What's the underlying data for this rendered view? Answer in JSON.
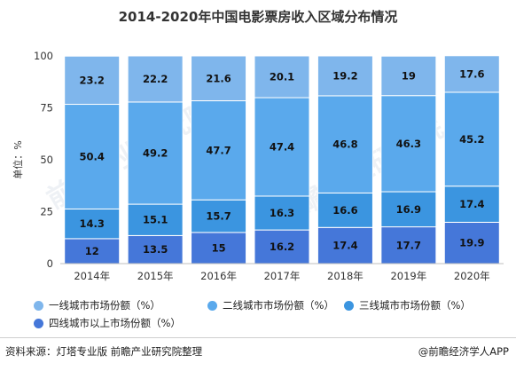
{
  "title": "2014-2020年中国电影票房收入区域分布情况",
  "source_text": "资料来源：灯塔专业版 前瞻产业研究院整理",
  "brand_text": "@前瞻经济学人APP",
  "watermark_text": "前瞻产业研究院",
  "chart_data": {
    "type": "bar",
    "stacked": true,
    "title": "2014-2020年中国电影票房收入区域分布情况",
    "ylabel": "单位：%",
    "xlabel": "",
    "ylim": [
      0,
      100
    ],
    "yticks": [
      0,
      25,
      50,
      75,
      100
    ],
    "categories": [
      "2014年",
      "2015年",
      "2016年",
      "2017年",
      "2018年",
      "2019年",
      "2020年"
    ],
    "series": [
      {
        "name": "四线城市以上市场份额（%）",
        "color": "#4577d9",
        "values": [
          12,
          13.5,
          15,
          16.2,
          17.4,
          17.7,
          19.9
        ]
      },
      {
        "name": "三线城市市场份额（%）",
        "color": "#3b95e0",
        "values": [
          14.3,
          15.1,
          15.7,
          16.3,
          16.6,
          16.9,
          17.4
        ]
      },
      {
        "name": "二线城市市场份额（%）",
        "color": "#5aa9ec",
        "values": [
          50.4,
          49.2,
          47.7,
          47.4,
          46.8,
          46.3,
          45.2
        ]
      },
      {
        "name": "一线城市市场份额（%）",
        "color": "#7fb6ec",
        "values": [
          23.2,
          22.2,
          21.6,
          20.1,
          19.2,
          19,
          17.6
        ]
      }
    ],
    "legend_order": [
      3,
      2,
      1,
      0
    ],
    "legend_position": "bottom",
    "grid": false
  }
}
